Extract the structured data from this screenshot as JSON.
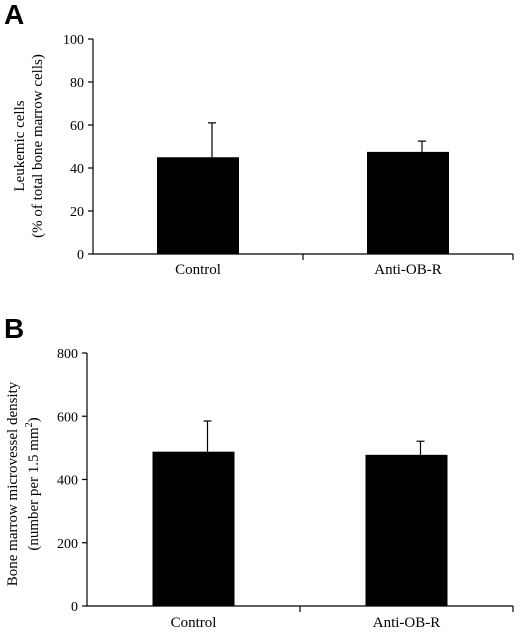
{
  "chart_data": [
    {
      "type": "bar",
      "panel": "A",
      "categories": [
        "Control",
        "Anti-OB-R"
      ],
      "values": [
        45,
        47.5
      ],
      "error_upper": [
        16,
        5
      ],
      "ylabel_line1": "Leukemic cells",
      "ylabel_line2": "(% of total bone marrow cells)",
      "ylim": [
        0,
        100
      ],
      "yticks": [
        0,
        20,
        40,
        60,
        80,
        100
      ],
      "grid": false,
      "bar_color": "#000000"
    },
    {
      "type": "bar",
      "panel": "B",
      "categories": [
        "Control",
        "Anti-OB-R"
      ],
      "values": [
        488,
        478
      ],
      "error_upper": [
        97,
        43
      ],
      "ylabel_line1": "Bone marrow microvessel density",
      "ylabel_line2_prefix": "(number per 1.5 mm",
      "ylabel_line2_sup": "2",
      "ylabel_line2_suffix": ")",
      "ylim": [
        0,
        800
      ],
      "yticks": [
        0,
        200,
        400,
        600,
        800
      ],
      "grid": false,
      "bar_color": "#000000"
    }
  ]
}
